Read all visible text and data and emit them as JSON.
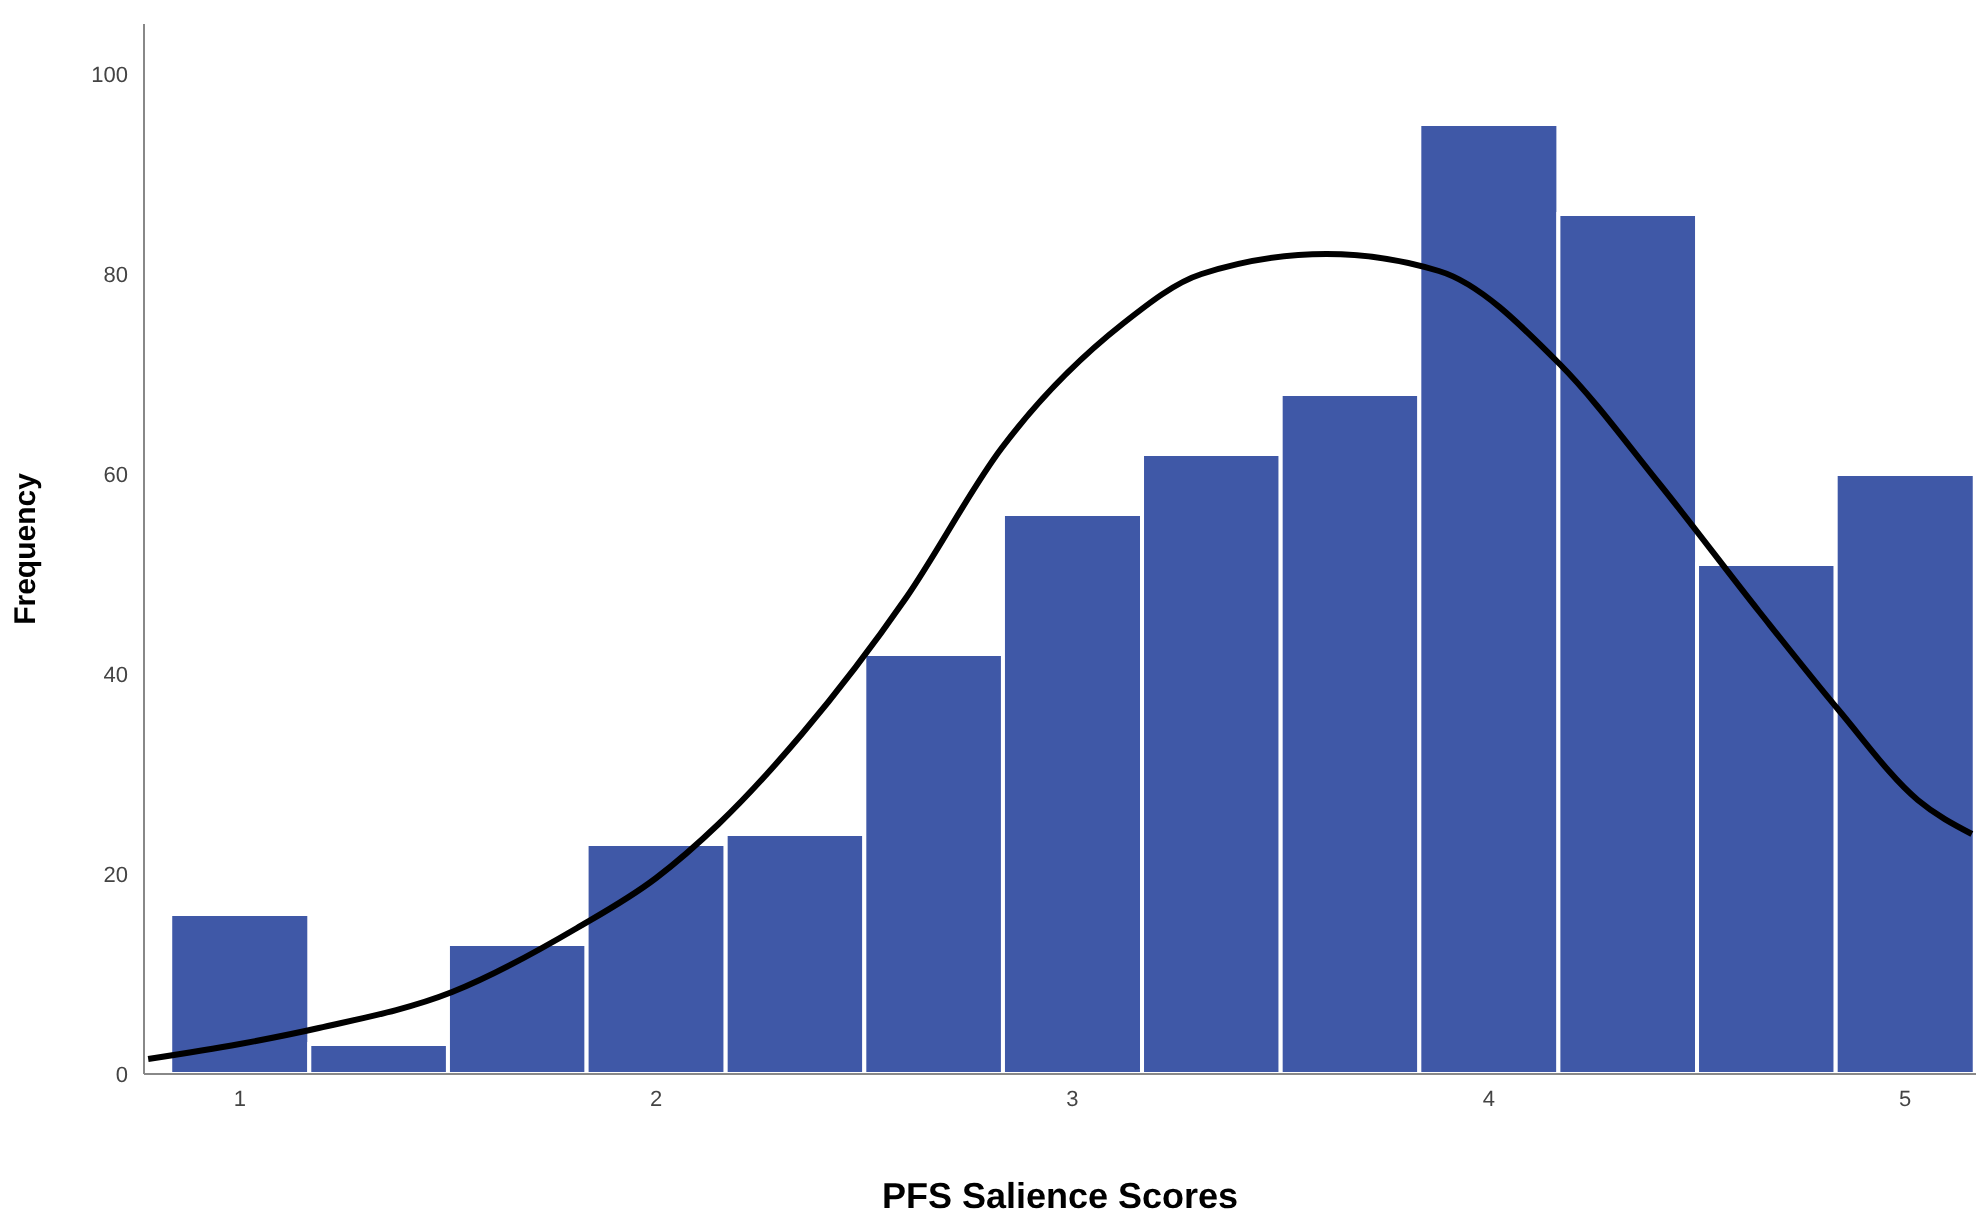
{
  "chart_data": {
    "type": "histogram",
    "xlabel": "PFS Salience Scores",
    "ylabel": "Frequency",
    "bins": [
      0.833,
      1.167,
      1.5,
      1.833,
      2.167,
      2.5,
      2.833,
      3.167,
      3.5,
      3.833,
      4.167,
      4.5,
      4.833,
      5.167
    ],
    "values": [
      16,
      3,
      13,
      23,
      24,
      42,
      56,
      62,
      68,
      95,
      86,
      51,
      60
    ],
    "color": "#3f58a7",
    "xlim": [
      0.77,
      5.17
    ],
    "ylim": [
      0,
      105
    ],
    "xticks": [
      1,
      2,
      3,
      4,
      5
    ],
    "yticks": [
      0,
      20,
      40,
      60,
      80,
      100
    ],
    "series": [
      {
        "type": "line",
        "color": "#000000",
        "x": [
          0.78,
          1.0,
          1.19,
          1.51,
          1.81,
          2.0,
          2.15,
          2.35,
          2.6,
          2.83,
          3.12,
          3.31,
          3.61,
          3.88,
          4.17,
          4.41,
          4.65,
          4.84,
          5.03,
          5.16
        ],
        "values": [
          1.5,
          3,
          4.6,
          8.2,
          14.6,
          19.6,
          25,
          34,
          47.6,
          62.6,
          75,
          80,
          82,
          80.3,
          71,
          59,
          46.2,
          36.4,
          27.4,
          24
        ]
      }
    ]
  }
}
